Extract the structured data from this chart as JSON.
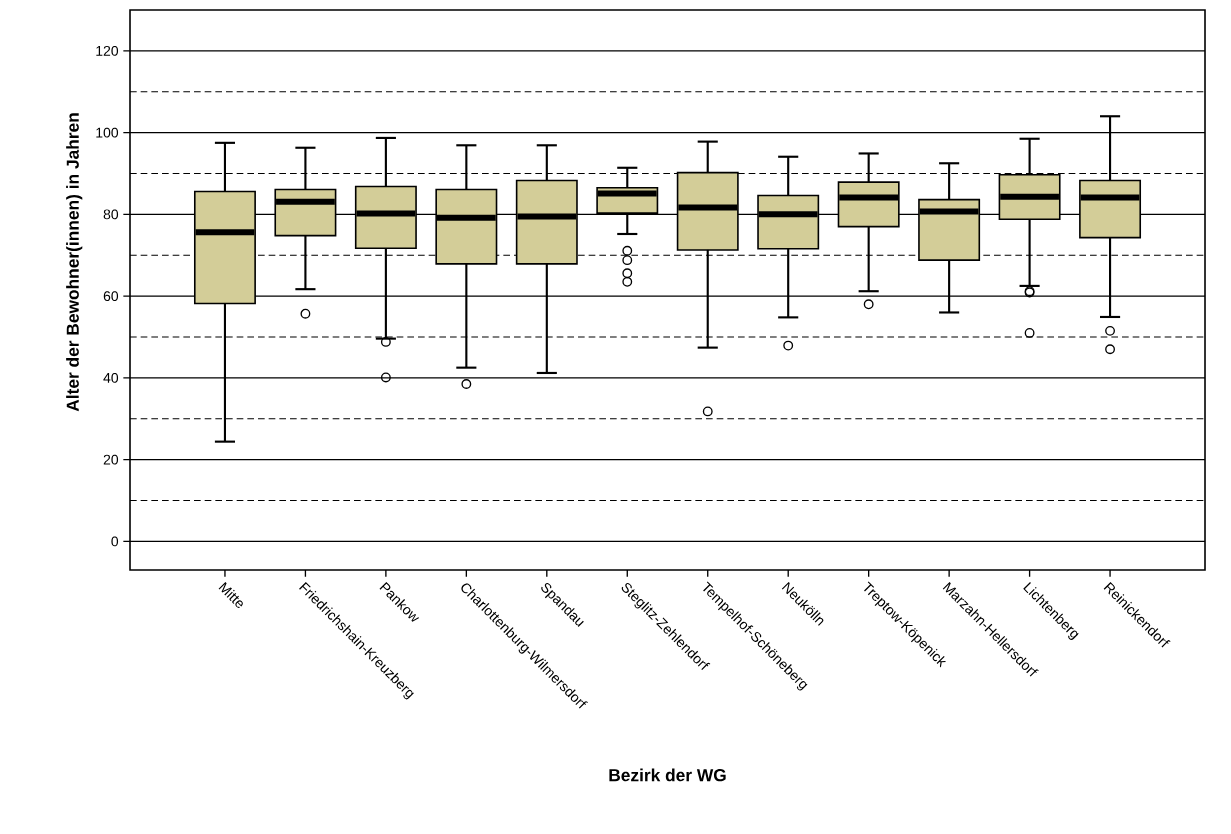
{
  "chart_data": {
    "type": "box",
    "xlabel": "Bezirk der WG",
    "ylabel": "Alter der Bewohner(innen) in Jahren",
    "categories": [
      "Mitte",
      "Friedrichshain-Kreuzberg",
      "Pankow",
      "Charlottenburg-Wilmersdorf",
      "Spandau",
      "Steglitz-Zehlendorf",
      "Tempelhof-Schöneberg",
      "Neukölln",
      "Treptow-Köpenick",
      "Marzahn-Hellersdorf",
      "Lichtenberg",
      "Reinickendorf"
    ],
    "color": "#d3cd98",
    "boxes": [
      {
        "low": 24.4,
        "q1": 58.2,
        "median": 75.6,
        "q3": 85.6,
        "high": 97.5
      },
      {
        "low": 61.7,
        "q1": 74.8,
        "median": 83.1,
        "q3": 86.1,
        "high": 96.3,
        "outliers": [
          55.7
        ]
      },
      {
        "low": 49.6,
        "q1": 71.7,
        "median": 80.2,
        "q3": 86.8,
        "high": 98.7,
        "outliers": [
          48.8,
          40.1
        ]
      },
      {
        "low": 42.5,
        "q1": 67.9,
        "median": 79.2,
        "q3": 86.1,
        "high": 96.9,
        "outliers": [
          38.5
        ]
      },
      {
        "low": 41.2,
        "q1": 67.9,
        "median": 79.5,
        "q3": 88.3,
        "high": 96.9
      },
      {
        "low": 75.2,
        "q1": 80.3,
        "median": 85.1,
        "q3": 86.5,
        "high": 91.4,
        "outliers": [
          71.1,
          68.8,
          65.6,
          63.5
        ]
      },
      {
        "low": 47.4,
        "q1": 71.3,
        "median": 81.7,
        "q3": 90.2,
        "high": 97.8,
        "outliers": [
          31.8
        ]
      },
      {
        "low": 54.8,
        "q1": 71.6,
        "median": 80.0,
        "q3": 84.6,
        "high": 94.1,
        "outliers": [
          47.9
        ]
      },
      {
        "low": 61.2,
        "q1": 77.0,
        "median": 84.1,
        "q3": 87.9,
        "high": 94.9,
        "outliers": [
          58.0
        ]
      },
      {
        "low": 56.0,
        "q1": 68.8,
        "median": 80.7,
        "q3": 83.6,
        "high": 92.5
      },
      {
        "low": 62.5,
        "q1": 78.8,
        "median": 84.3,
        "q3": 89.7,
        "high": 98.5,
        "outliers": [
          61.2,
          60.9,
          51.0
        ]
      },
      {
        "low": 54.9,
        "q1": 74.3,
        "median": 84.1,
        "q3": 88.3,
        "high": 104.0,
        "outliers": [
          51.5,
          47.0
        ]
      }
    ],
    "ylim": [
      -7,
      130
    ],
    "yticks": [
      0,
      20,
      40,
      60,
      80,
      100,
      120
    ],
    "grid": "y",
    "marker": "circle",
    "ref_lines": [
      {
        "axis": "y",
        "value": 10,
        "line_style": "dashed"
      },
      {
        "axis": "y",
        "value": 30,
        "line_style": "dashed"
      },
      {
        "axis": "y",
        "value": 50,
        "line_style": "dashed"
      },
      {
        "axis": "y",
        "value": 70,
        "line_style": "dashed"
      },
      {
        "axis": "y",
        "value": 90,
        "line_style": "dashed"
      },
      {
        "axis": "y",
        "value": 110,
        "line_style": "dashed"
      }
    ]
  }
}
